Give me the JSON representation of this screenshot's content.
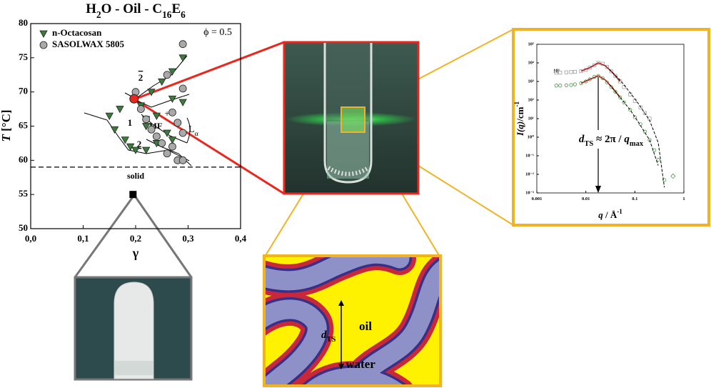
{
  "chart_data": [
    {
      "type": "scatter",
      "title": {
        "segments": [
          "H",
          "2",
          "O - Oil - C",
          "16",
          "E",
          "6"
        ],
        "styles": [
          "normal",
          "sub",
          "normal",
          "sub",
          "normal",
          "sub"
        ]
      },
      "x_label": "γ",
      "y_label": {
        "segments": [
          "T",
          " [°C]"
        ],
        "styles": [
          "italic",
          "normal"
        ]
      },
      "xlim": [
        0,
        0.4
      ],
      "ylim": [
        50,
        80
      ],
      "xticks": [
        {
          "value": 0,
          "label": "0,0"
        },
        {
          "value": 0.1,
          "label": "0,1"
        },
        {
          "value": 0.2,
          "label": "0,2"
        },
        {
          "value": 0.3,
          "label": "0,3"
        },
        {
          "value": 0.4,
          "label": "0,4"
        }
      ],
      "yticks": [
        50,
        55,
        60,
        65,
        70,
        75,
        80
      ],
      "series": [
        {
          "name": "n-Octacosan",
          "color": "#3a7d3a",
          "marker": "triangle",
          "x": [
            0.15,
            0.16,
            0.17,
            0.18,
            0.19,
            0.2,
            0.22,
            0.24,
            0.21,
            0.23,
            0.25,
            0.27,
            0.29,
            0.22,
            0.27,
            0.29,
            0.24,
            0.26,
            0.27,
            0.22
          ],
          "values": [
            66.5,
            64.5,
            67.5,
            63,
            62,
            61.5,
            61.5,
            62.5,
            68,
            70,
            71.5,
            73,
            75,
            65,
            69,
            68.5,
            66.5,
            64,
            63,
            66
          ]
        },
        {
          "name": "SASOLWAX 5805",
          "color": "#a9a9a9",
          "marker": "circle",
          "x": [
            0.2,
            0.21,
            0.22,
            0.23,
            0.24,
            0.25,
            0.26,
            0.28,
            0.27,
            0.29,
            0.27,
            0.29,
            0.26,
            0.29,
            0.28,
            0.29
          ],
          "values": [
            70,
            67.5,
            66,
            64.5,
            63.5,
            62.5,
            61,
            60,
            62,
            64,
            67,
            70.5,
            72.5,
            77,
            65.5,
            60
          ]
        }
      ],
      "critical_point": {
        "x": 0.197,
        "value": 69,
        "color": "#e8281e"
      },
      "solid_sample": {
        "x": 0.195,
        "value": 55,
        "color": "#000000"
      },
      "solid_boundary": 59,
      "annotations": {
        "phi": "ϕ = 0.5",
        "region_1": "1",
        "region_2_upper": "2",
        "region_2_lower": "2",
        "mf": "MF",
        "plus": "+",
        "lamellar": {
          "segments": [
            "L",
            "α"
          ],
          "styles": [
            "normal",
            "sub"
          ]
        },
        "solid": "solid"
      }
    },
    {
      "type": "scatter",
      "log_x": true,
      "log_y": true,
      "x_label": {
        "segments": [
          "q",
          " / Å",
          "-1"
        ],
        "styles": [
          "italic",
          "normal",
          "sup"
        ]
      },
      "y_label": {
        "segments": [
          "I(q)",
          "/cm",
          "-1"
        ],
        "styles": [
          "italic",
          "normal",
          "sup"
        ]
      },
      "xlim": [
        0.001,
        1
      ],
      "ylim": [
        0.001,
        100000
      ],
      "xticks": [
        0.001,
        0.01,
        0.1,
        1
      ],
      "yticks": [
        {
          "value": 0.001,
          "label": "10⁻³"
        },
        {
          "value": 0.01,
          "label": "10⁻²"
        },
        {
          "value": 0.1,
          "label": "10⁻¹"
        },
        {
          "value": 1,
          "label": "10⁰"
        },
        {
          "value": 10,
          "label": "10¹"
        },
        {
          "value": 100,
          "label": "10²"
        },
        {
          "value": 1000,
          "label": "10³"
        },
        {
          "value": 10000,
          "label": "10⁴"
        },
        {
          "value": 100000,
          "label": "10⁵"
        }
      ],
      "series": [
        {
          "color": "#a0a0a0",
          "marker": "square",
          "x": [
            0.0025,
            0.003,
            0.004,
            0.005,
            0.006,
            0.008,
            0.01,
            0.012,
            0.015,
            0.018,
            0.022,
            0.027,
            0.033,
            0.04,
            0.05,
            0.06,
            0.08,
            0.1,
            0.13,
            0.16,
            0.2
          ],
          "values": [
            3000,
            3000,
            3100,
            3200,
            3300,
            3600,
            4200,
            5500,
            7500,
            10000,
            9000,
            6000,
            3500,
            2000,
            1000,
            500,
            200,
            90,
            40,
            20,
            10
          ]
        },
        {
          "color": "#3f9a3f",
          "marker": "circle",
          "x": [
            0.0025,
            0.003,
            0.004,
            0.005,
            0.006,
            0.008,
            0.01,
            0.012,
            0.015,
            0.018,
            0.022,
            0.027,
            0.033,
            0.04,
            0.05,
            0.06,
            0.08,
            0.1,
            0.13,
            0.16,
            0.2,
            0.25,
            0.3,
            0.4
          ],
          "values": [
            600,
            600,
            620,
            650,
            700,
            800,
            1000,
            1300,
            1800,
            2000,
            1500,
            900,
            500,
            280,
            140,
            75,
            30,
            12,
            5,
            2,
            0.7,
            0.2,
            0.06,
            0.005
          ]
        },
        {
          "color": "#3f9a3f",
          "marker": "diamond",
          "x": [
            0.6
          ],
          "values": [
            0.008
          ]
        },
        {
          "color": "#b22222",
          "marker": "line",
          "x": [
            0.008,
            0.012,
            0.018,
            0.025,
            0.035,
            0.05
          ],
          "values": [
            3600,
            5500,
            10000,
            7000,
            3000,
            1000
          ]
        },
        {
          "color": "#b22222",
          "marker": "line",
          "x": [
            0.008,
            0.012,
            0.018,
            0.025,
            0.035,
            0.05
          ],
          "values": [
            800,
            1300,
            2000,
            1200,
            450,
            140
          ]
        },
        {
          "color": "#000000",
          "marker": "dashed",
          "x": [
            0.03,
            0.05,
            0.08,
            0.12,
            0.2,
            0.3,
            0.4
          ],
          "values": [
            4500,
            1200,
            250,
            60,
            8,
            0.5,
            0.002
          ]
        },
        {
          "color": "#000000",
          "marker": "dashed",
          "x": [
            0.03,
            0.05,
            0.08,
            0.12,
            0.2,
            0.3
          ],
          "values": [
            700,
            140,
            30,
            6,
            0.7,
            0.03
          ]
        }
      ],
      "offset_label": "10¹",
      "peak_label": {
        "segments": [
          "d",
          "TS",
          " ≈ 2π / ",
          "q",
          "max"
        ],
        "styles": [
          "italic",
          "sub",
          "normal",
          "italic",
          "sub"
        ]
      }
    }
  ],
  "diagram": {
    "oil": "oil",
    "water": "water",
    "spacing": {
      "segments": [
        "d",
        "TS"
      ],
      "styles": [
        "italic",
        "sub"
      ]
    }
  }
}
